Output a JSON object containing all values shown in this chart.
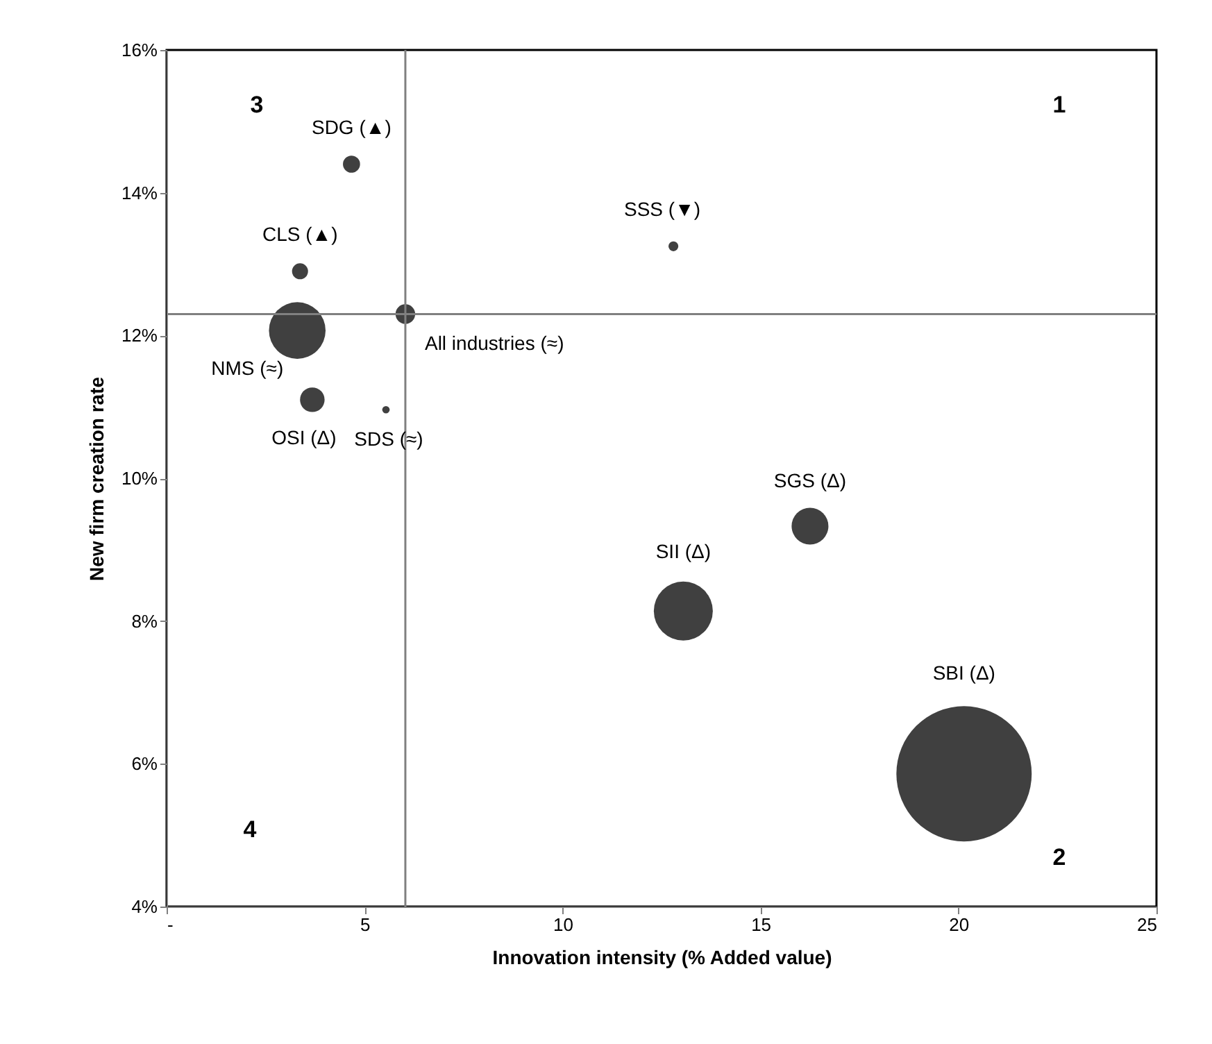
{
  "chart_data": {
    "type": "bubble",
    "xlabel": "Innovation intensity (% Added value)",
    "ylabel": "New firm creation rate",
    "xlim": [
      0,
      25
    ],
    "xticks": [
      {
        "value": 0,
        "label": "-"
      },
      5,
      10,
      15,
      20,
      25
    ],
    "ylim": [
      4,
      16
    ],
    "yticks": [
      {
        "value": 4,
        "label": "4%"
      },
      {
        "value": 6,
        "label": "6%"
      },
      {
        "value": 8,
        "label": "8%"
      },
      {
        "value": 10,
        "label": "10%"
      },
      {
        "value": 12,
        "label": "12%"
      },
      {
        "value": 14,
        "label": "14%"
      },
      {
        "value": 16,
        "label": "16%"
      }
    ],
    "grid": false,
    "series": [
      {
        "name": "SDG (▲)",
        "color": "#404040",
        "x": [
          4.67
        ],
        "values": [
          14.4
        ],
        "sizes": [
          0.016
        ]
      },
      {
        "name": "CLS (▲)",
        "color": "#404040",
        "x": [
          3.37
        ],
        "values": [
          12.9
        ],
        "sizes": [
          0.014
        ]
      },
      {
        "name": "All industries  (≈)",
        "color": "#404040",
        "x": [
          6.03
        ],
        "values": [
          12.3
        ],
        "sizes": [
          0.021
        ]
      },
      {
        "name": "NMS (≈)",
        "color": "#404040",
        "x": [
          3.3
        ],
        "values": [
          12.07
        ],
        "sizes": [
          0.175
        ]
      },
      {
        "name": "OSI (Δ)",
        "color": "#404040",
        "x": [
          3.68
        ],
        "values": [
          11.1
        ],
        "sizes": [
          0.033
        ]
      },
      {
        "name": "SDS (≈)",
        "color": "#404040",
        "x": [
          5.54
        ],
        "values": [
          10.96
        ],
        "sizes": [
          0.003
        ]
      },
      {
        "name": "SSS (▼)",
        "color": "#404040",
        "x": [
          12.8
        ],
        "values": [
          13.25
        ],
        "sizes": [
          0.0053
        ]
      },
      {
        "name": "SGS (Δ)",
        "color": "#404040",
        "x": [
          16.25
        ],
        "values": [
          9.33
        ],
        "sizes": [
          0.074
        ]
      },
      {
        "name": "SII (Δ)",
        "color": "#404040",
        "x": [
          13.05
        ],
        "values": [
          8.14
        ],
        "sizes": [
          0.19
        ]
      },
      {
        "name": "SBI (Δ)",
        "color": "#404040",
        "x": [
          20.14
        ],
        "values": [
          5.86
        ],
        "sizes": [
          1
        ]
      }
    ],
    "ref_lines": [
      {
        "axis": "x",
        "value": 6.03,
        "color": "#808080"
      },
      {
        "axis": "y",
        "value": 12.3,
        "color": "#808080"
      }
    ],
    "annotations": [
      "1",
      "2",
      "3",
      "4"
    ]
  }
}
